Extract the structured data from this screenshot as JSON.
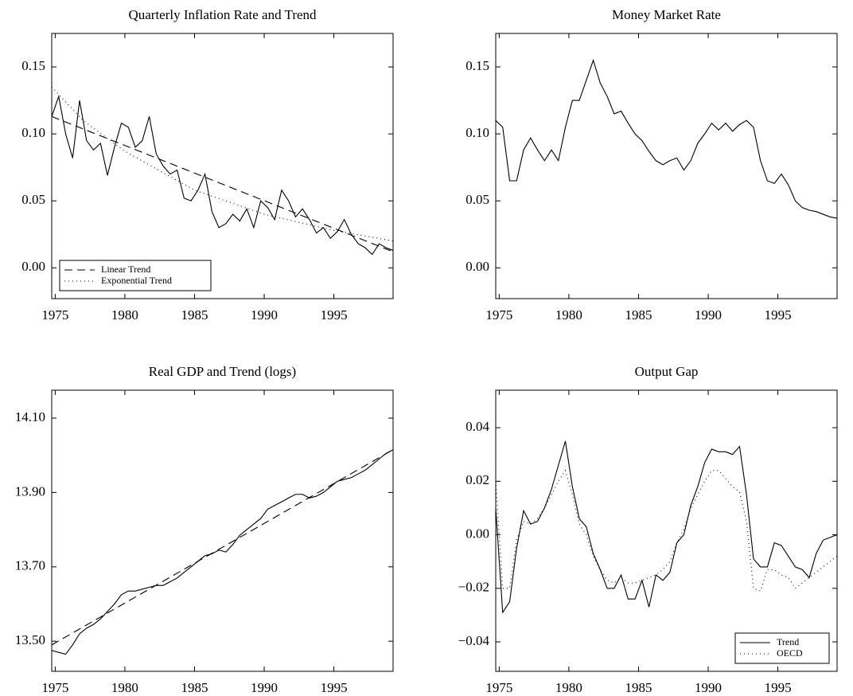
{
  "chart_data": [
    {
      "type": "line",
      "title": "Quarterly Inflation Rate and Trend",
      "legend": "lower left",
      "xlim": [
        1974.75,
        1999.25
      ],
      "xticks": [
        1975,
        1980,
        1985,
        1990,
        1995
      ],
      "ylim": [
        -0.023,
        0.175
      ],
      "yticks": [
        {
          "value": 0,
          "label": "0.00"
        },
        0.05,
        {
          "value": 0.1,
          "label": "0.10"
        },
        0.15
      ],
      "x": [
        1974.75,
        1975.25,
        1975.75,
        1976.25,
        1976.75,
        1977.25,
        1977.75,
        1978.25,
        1978.75,
        1979.25,
        1979.75,
        1980.25,
        1980.75,
        1981.25,
        1981.75,
        1982.25,
        1982.75,
        1983.25,
        1983.75,
        1984.25,
        1984.75,
        1985.25,
        1985.75,
        1986.25,
        1986.75,
        1987.25,
        1987.75,
        1988.25,
        1988.75,
        1989.25,
        1989.75,
        1990.25,
        1990.75,
        1991.25,
        1991.75,
        1992.25,
        1992.75,
        1993.25,
        1993.75,
        1994.25,
        1994.75,
        1995.25,
        1995.75,
        1996.25,
        1996.75,
        1997.25,
        1997.75,
        1998.25,
        1998.75,
        1999.25
      ],
      "series": [
        {
          "color": "#000000",
          "style": "solid",
          "values": [
            0.113,
            0.128,
            0.1,
            0.082,
            0.125,
            0.095,
            0.088,
            0.093,
            0.069,
            0.09,
            0.108,
            0.105,
            0.09,
            0.095,
            0.113,
            0.085,
            0.076,
            0.07,
            0.073,
            0.052,
            0.05,
            0.058,
            0.07,
            0.042,
            0.03,
            0.033,
            0.04,
            0.035,
            0.044,
            0.03,
            0.05,
            0.045,
            0.036,
            0.058,
            0.05,
            0.038,
            0.044,
            0.036,
            0.026,
            0.03,
            0.022,
            0.027,
            0.036,
            0.025,
            0.018,
            0.015,
            0.01,
            0.018,
            0.015,
            0.013
          ]
        },
        {
          "name": "Linear Trend",
          "color": "#000000",
          "style": "dashed",
          "x": [
            1974.75,
            1999.25
          ],
          "values": [
            0.113,
            0.012
          ]
        },
        {
          "name": "Exponential Trend",
          "color": "#000000",
          "style": "dotted",
          "x": [
            1974.75,
            1977,
            1980,
            1985,
            1990,
            1995,
            1999.25
          ],
          "values": [
            0.135,
            0.11,
            0.087,
            0.058,
            0.04,
            0.028,
            0.02
          ]
        }
      ]
    },
    {
      "type": "line",
      "title": "Money Market Rate",
      "xlim": [
        1974.75,
        1999.25
      ],
      "xticks": [
        1975,
        1980,
        1985,
        1990,
        1995
      ],
      "ylim": [
        -0.023,
        0.175
      ],
      "yticks": [
        {
          "value": 0,
          "label": "0.00"
        },
        0.05,
        {
          "value": 0.1,
          "label": "0.10"
        },
        0.15
      ],
      "x": [
        1974.75,
        1975.25,
        1975.75,
        1976.25,
        1976.75,
        1977.25,
        1977.75,
        1978.25,
        1978.75,
        1979.25,
        1979.75,
        1980.25,
        1980.75,
        1981.25,
        1981.75,
        1982.25,
        1982.75,
        1983.25,
        1983.75,
        1984.25,
        1984.75,
        1985.25,
        1985.75,
        1986.25,
        1986.75,
        1987.25,
        1987.75,
        1988.25,
        1988.75,
        1989.25,
        1989.75,
        1990.25,
        1990.75,
        1991.25,
        1991.75,
        1992.25,
        1992.75,
        1993.25,
        1993.75,
        1994.25,
        1994.75,
        1995.25,
        1995.75,
        1996.25,
        1996.75,
        1997.25,
        1997.75,
        1998.25,
        1998.75,
        1999.25
      ],
      "series": [
        {
          "color": "#000000",
          "style": "solid",
          "values": [
            0.11,
            0.105,
            0.065,
            0.065,
            0.088,
            0.097,
            0.088,
            0.08,
            0.088,
            0.08,
            0.105,
            0.125,
            0.125,
            0.14,
            0.155,
            0.138,
            0.128,
            0.115,
            0.117,
            0.108,
            0.1,
            0.095,
            0.087,
            0.08,
            0.077,
            0.08,
            0.082,
            0.073,
            0.08,
            0.093,
            0.1,
            0.108,
            0.103,
            0.108,
            0.102,
            0.107,
            0.11,
            0.105,
            0.08,
            0.065,
            0.063,
            0.07,
            0.062,
            0.05,
            0.045,
            0.043,
            0.042,
            0.04,
            0.038,
            0.037
          ]
        }
      ]
    },
    {
      "type": "line",
      "title": "Real GDP and Trend (logs)",
      "xlim": [
        1974.75,
        1999.25
      ],
      "xticks": [
        1975,
        1980,
        1985,
        1990,
        1995
      ],
      "ylim": [
        13.419,
        14.175
      ],
      "yticks": [
        {
          "value": 13.5,
          "label": "13.50"
        },
        {
          "value": 13.7,
          "label": "13.70"
        },
        {
          "value": 13.9,
          "label": "13.90"
        },
        {
          "value": 14.1,
          "label": "14.10"
        }
      ],
      "x": [
        1974.75,
        1975.25,
        1975.75,
        1976.25,
        1976.75,
        1977.25,
        1977.75,
        1978.25,
        1978.75,
        1979.25,
        1979.75,
        1980.25,
        1980.75,
        1981.25,
        1981.75,
        1982.25,
        1982.75,
        1983.25,
        1983.75,
        1984.25,
        1984.75,
        1985.25,
        1985.75,
        1986.25,
        1986.75,
        1987.25,
        1987.75,
        1988.25,
        1988.75,
        1989.25,
        1989.75,
        1990.25,
        1990.75,
        1991.25,
        1991.75,
        1992.25,
        1992.75,
        1993.25,
        1993.75,
        1994.25,
        1994.75,
        1995.25,
        1995.75,
        1996.25,
        1996.75,
        1997.25,
        1997.75,
        1998.25,
        1998.75,
        1999.25
      ],
      "series": [
        {
          "color": "#000000",
          "style": "solid",
          "values": [
            13.475,
            13.47,
            13.465,
            13.49,
            13.52,
            13.535,
            13.545,
            13.56,
            13.58,
            13.6,
            13.625,
            13.635,
            13.635,
            13.64,
            13.645,
            13.65,
            13.65,
            13.66,
            13.67,
            13.685,
            13.7,
            13.715,
            13.73,
            13.735,
            13.745,
            13.74,
            13.76,
            13.785,
            13.8,
            13.815,
            13.83,
            13.855,
            13.865,
            13.875,
            13.885,
            13.895,
            13.895,
            13.885,
            13.89,
            13.9,
            13.915,
            13.93,
            13.935,
            13.94,
            13.95,
            13.96,
            13.975,
            13.99,
            14.005,
            14.015
          ]
        },
        {
          "color": "#000000",
          "style": "dashed",
          "x": [
            1974.75,
            1999.25
          ],
          "values": [
            13.49,
            14.015
          ]
        }
      ]
    },
    {
      "type": "line",
      "title": "Output Gap",
      "legend": "lower right",
      "xlim": [
        1974.75,
        1999.25
      ],
      "xticks": [
        1975,
        1980,
        1985,
        1990,
        1995
      ],
      "ylim": [
        -0.051,
        0.054
      ],
      "yticks": [
        {
          "value": -0.04,
          "label": "−0.04"
        },
        {
          "value": -0.02,
          "label": "−0.02"
        },
        {
          "value": 0,
          "label": "0.00"
        },
        0.02,
        0.04
      ],
      "x": [
        1974.75,
        1975.25,
        1975.75,
        1976.25,
        1976.75,
        1977.25,
        1977.75,
        1978.25,
        1978.75,
        1979.25,
        1979.75,
        1980.25,
        1980.75,
        1981.25,
        1981.75,
        1982.25,
        1982.75,
        1983.25,
        1983.75,
        1984.25,
        1984.75,
        1985.25,
        1985.75,
        1986.25,
        1986.75,
        1987.25,
        1987.75,
        1988.25,
        1988.75,
        1989.25,
        1989.75,
        1990.25,
        1990.75,
        1991.25,
        1991.75,
        1992.25,
        1992.75,
        1993.25,
        1993.75,
        1994.25,
        1994.75,
        1995.25,
        1995.75,
        1996.25,
        1996.75,
        1997.25,
        1997.75,
        1998.25,
        1998.75,
        1999.25
      ],
      "series": [
        {
          "name": "Trend",
          "color": "#000000",
          "style": "solid",
          "values": [
            0.01,
            -0.029,
            -0.025,
            -0.005,
            0.009,
            0.004,
            0.005,
            0.01,
            0.017,
            0.026,
            0.035,
            0.018,
            0.006,
            0.003,
            -0.007,
            -0.013,
            -0.02,
            -0.02,
            -0.015,
            -0.024,
            -0.024,
            -0.017,
            -0.027,
            -0.015,
            -0.017,
            -0.014,
            -0.003,
            0.0,
            0.011,
            0.018,
            0.027,
            0.032,
            0.031,
            0.031,
            0.03,
            0.033,
            0.015,
            -0.009,
            -0.012,
            -0.012,
            -0.003,
            -0.004,
            -0.008,
            -0.012,
            -0.013,
            -0.016,
            -0.007,
            -0.002,
            -0.001,
            0.0
          ]
        },
        {
          "name": "OECD",
          "color": "#000000",
          "style": "dotted",
          "values": [
            0.02,
            -0.02,
            -0.02,
            -0.002,
            0.005,
            0.004,
            0.006,
            0.01,
            0.015,
            0.02,
            0.024,
            0.015,
            0.004,
            0.0,
            -0.008,
            -0.013,
            -0.017,
            -0.018,
            -0.016,
            -0.018,
            -0.018,
            -0.017,
            -0.016,
            -0.015,
            -0.013,
            -0.01,
            -0.003,
            0.002,
            0.01,
            0.015,
            0.02,
            0.024,
            0.024,
            0.021,
            0.018,
            0.016,
            0.005,
            -0.02,
            -0.021,
            -0.013,
            -0.013,
            -0.015,
            -0.016,
            -0.02,
            -0.018,
            -0.016,
            -0.014,
            -0.012,
            -0.01,
            -0.008
          ]
        }
      ]
    }
  ]
}
